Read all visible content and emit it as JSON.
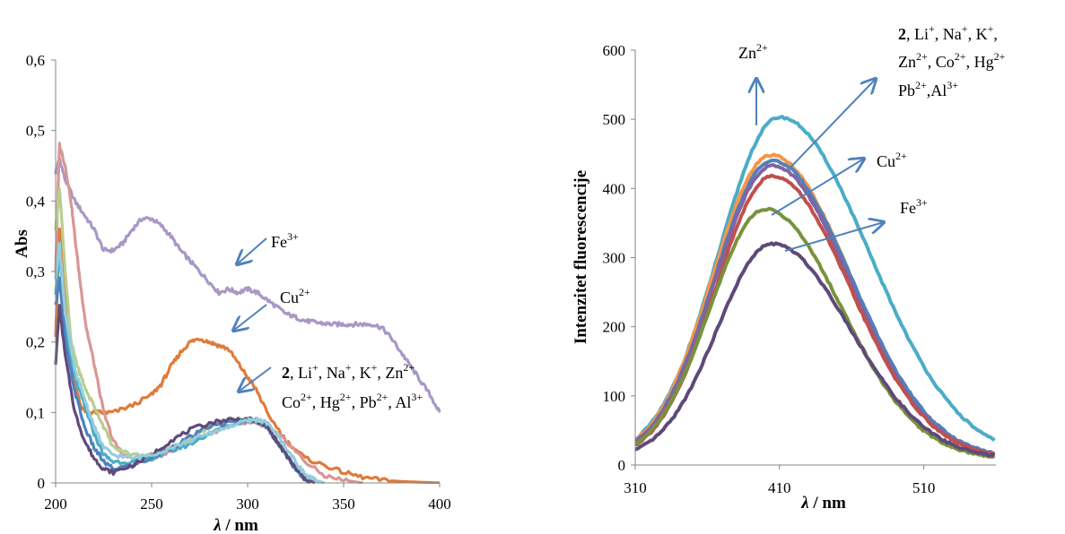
{
  "colors": {
    "purple_light": "#a898c6",
    "orange": "#e07b39",
    "pink": "#d99694",
    "lime": "#b9cd8f",
    "teal": "#4bacc6",
    "blue": "#4f81bd",
    "dark_purple": "#604a7b",
    "light_blue": "#93cddd",
    "cyan": "#4bacc6",
    "orange2": "#f79646",
    "red": "#c0504d",
    "navy_purple": "#8064a2",
    "green": "#77933c",
    "indigo": "#5f497a",
    "arrow": "#4f81bd"
  },
  "chart_data": [
    {
      "type": "line",
      "xlabel_italic": "λ",
      "xlabel_rest": " / nm",
      "ylabel": "Abs",
      "xlim": [
        200,
        400
      ],
      "ylim": [
        0,
        0.6
      ],
      "xticks": [
        200,
        250,
        300,
        350,
        400
      ],
      "yticks": [
        "0",
        "0,1",
        "0,2",
        "0,3",
        "0,4",
        "0,5",
        "0,6"
      ],
      "ytick_values": [
        0,
        0.1,
        0.2,
        0.3,
        0.4,
        0.5,
        0.6
      ],
      "grid": false,
      "series": [
        {
          "color_key": "purple_light",
          "x": [
            200,
            202,
            205,
            210,
            215,
            220,
            225,
            230,
            235,
            240,
            245,
            250,
            255,
            260,
            265,
            270,
            275,
            280,
            285,
            290,
            295,
            300,
            305,
            310,
            315,
            320,
            325,
            330,
            335,
            340,
            345,
            350,
            355,
            360,
            365,
            370,
            375,
            380,
            385,
            390,
            395,
            400
          ],
          "y": [
            0.44,
            0.46,
            0.43,
            0.4,
            0.38,
            0.36,
            0.33,
            0.33,
            0.34,
            0.36,
            0.375,
            0.375,
            0.365,
            0.35,
            0.33,
            0.315,
            0.3,
            0.285,
            0.27,
            0.275,
            0.27,
            0.275,
            0.27,
            0.26,
            0.25,
            0.24,
            0.235,
            0.23,
            0.228,
            0.226,
            0.225,
            0.225,
            0.225,
            0.225,
            0.225,
            0.22,
            0.205,
            0.185,
            0.165,
            0.145,
            0.125,
            0.1
          ]
        },
        {
          "color_key": "orange",
          "x": [
            200,
            202,
            205,
            208,
            210,
            213,
            216,
            220,
            225,
            230,
            240,
            250,
            255,
            260,
            265,
            270,
            275,
            280,
            285,
            290,
            295,
            300,
            305,
            310,
            320,
            330,
            340,
            350,
            360,
            370,
            380,
            390,
            400
          ],
          "y": [
            0.21,
            0.36,
            0.28,
            0.18,
            0.14,
            0.11,
            0.1,
            0.1,
            0.1,
            0.1,
            0.11,
            0.125,
            0.14,
            0.165,
            0.185,
            0.2,
            0.205,
            0.2,
            0.195,
            0.19,
            0.17,
            0.15,
            0.13,
            0.1,
            0.06,
            0.035,
            0.025,
            0.015,
            0.008,
            0.004,
            0.002,
            0.001,
            0.0
          ]
        },
        {
          "color_key": "pink",
          "x": [
            200,
            202,
            205,
            208,
            210,
            213,
            216,
            220,
            225,
            230,
            235,
            240,
            250,
            260,
            270,
            280,
            290,
            300,
            310,
            320,
            330,
            340,
            350,
            360
          ],
          "y": [
            0.3,
            0.48,
            0.45,
            0.4,
            0.35,
            0.28,
            0.22,
            0.17,
            0.1,
            0.06,
            0.04,
            0.035,
            0.035,
            0.045,
            0.06,
            0.07,
            0.08,
            0.085,
            0.08,
            0.06,
            0.03,
            0.01,
            0.004,
            0.0
          ]
        },
        {
          "color_key": "lime",
          "x": [
            200,
            202,
            205,
            208,
            212,
            216,
            220,
            225,
            230,
            240,
            250,
            260,
            270,
            280,
            285,
            290,
            295,
            300,
            305,
            310,
            315,
            320,
            325,
            330,
            335,
            340
          ],
          "y": [
            0.36,
            0.42,
            0.3,
            0.2,
            0.16,
            0.13,
            0.11,
            0.08,
            0.05,
            0.04,
            0.04,
            0.05,
            0.06,
            0.08,
            0.085,
            0.09,
            0.09,
            0.09,
            0.088,
            0.08,
            0.06,
            0.04,
            0.02,
            0.008,
            0.003,
            0.0
          ]
        },
        {
          "color_key": "teal",
          "x": [
            200,
            202,
            205,
            210,
            215,
            220,
            225,
            230,
            240,
            250,
            260,
            270,
            280,
            290,
            300,
            305,
            310,
            315,
            320,
            325,
            330,
            335
          ],
          "y": [
            0.27,
            0.33,
            0.22,
            0.15,
            0.11,
            0.07,
            0.04,
            0.03,
            0.03,
            0.035,
            0.045,
            0.055,
            0.07,
            0.08,
            0.09,
            0.088,
            0.08,
            0.06,
            0.04,
            0.02,
            0.005,
            0.0
          ]
        },
        {
          "color_key": "blue",
          "x": [
            200,
            202,
            205,
            210,
            215,
            220,
            225,
            230,
            240,
            250,
            260,
            270,
            280,
            290,
            300,
            305,
            310,
            315,
            320,
            325,
            330,
            335
          ],
          "y": [
            0.25,
            0.29,
            0.2,
            0.13,
            0.08,
            0.05,
            0.03,
            0.02,
            0.025,
            0.035,
            0.05,
            0.065,
            0.08,
            0.085,
            0.09,
            0.088,
            0.08,
            0.06,
            0.04,
            0.02,
            0.005,
            0.0
          ]
        },
        {
          "color_key": "dark_purple",
          "x": [
            200,
            202,
            205,
            210,
            215,
            220,
            225,
            230,
            240,
            250,
            260,
            270,
            280,
            290,
            300,
            305,
            310,
            315,
            320,
            325,
            330,
            335
          ],
          "y": [
            0.17,
            0.25,
            0.18,
            0.1,
            0.06,
            0.035,
            0.02,
            0.015,
            0.025,
            0.04,
            0.06,
            0.075,
            0.085,
            0.09,
            0.09,
            0.088,
            0.08,
            0.06,
            0.04,
            0.02,
            0.005,
            0.0
          ]
        },
        {
          "color_key": "light_blue",
          "x": [
            200,
            202,
            205,
            210,
            215,
            220,
            225,
            230,
            240,
            250,
            260,
            270,
            280,
            290,
            300,
            305,
            310,
            315,
            320,
            325,
            330,
            335,
            340
          ],
          "y": [
            0.29,
            0.34,
            0.24,
            0.16,
            0.12,
            0.08,
            0.05,
            0.04,
            0.035,
            0.04,
            0.05,
            0.06,
            0.07,
            0.08,
            0.088,
            0.09,
            0.085,
            0.07,
            0.05,
            0.03,
            0.012,
            0.004,
            0.0
          ]
        }
      ]
    },
    {
      "type": "line",
      "xlabel_italic": "λ",
      "xlabel_rest": " / nm",
      "ylabel": "Intenzitet fluorescencije",
      "xlim": [
        310,
        560
      ],
      "ylim": [
        0,
        600
      ],
      "xticks": [
        310,
        410,
        510
      ],
      "yticks": [
        "0",
        "100",
        "200",
        "300",
        "400",
        "500",
        "600"
      ],
      "ytick_values": [
        0,
        100,
        200,
        300,
        400,
        500,
        600
      ],
      "grid": false,
      "series": [
        {
          "color_key": "cyan",
          "peak": 495,
          "center": 410,
          "sigma_left": 42,
          "sigma_right": 62
        },
        {
          "color_key": "orange2",
          "peak": 440,
          "center": 404,
          "sigma_left": 40,
          "sigma_right": 55
        },
        {
          "color_key": "blue",
          "peak": 432,
          "center": 405,
          "sigma_left": 40,
          "sigma_right": 55
        },
        {
          "color_key": "navy_purple",
          "peak": 425,
          "center": 405,
          "sigma_left": 40,
          "sigma_right": 54
        },
        {
          "color_key": "red",
          "peak": 410,
          "center": 405,
          "sigma_left": 39,
          "sigma_right": 54
        },
        {
          "color_key": "green",
          "peak": 362,
          "center": 400,
          "sigma_left": 38,
          "sigma_right": 53
        },
        {
          "color_key": "indigo",
          "peak": 312,
          "center": 405,
          "sigma_left": 38,
          "sigma_right": 54
        }
      ]
    }
  ],
  "annotations": {
    "left": {
      "fe": {
        "base": "Fe",
        "sup": "3+"
      },
      "cu": {
        "base": "Cu",
        "sup": "2+"
      },
      "group_line1": {
        "bold": "2",
        "rest": ", Li",
        "s1": "+",
        "t2": ", Na",
        "s2": "+",
        "t3": ", K",
        "s3": "+",
        "t4": ", Zn",
        "s4": "2+"
      },
      "group_line2": {
        "t1": "Co",
        "s1": "2+",
        "t2": ", Hg",
        "s2": "2+",
        "t3": ", Pb",
        "s3": "2+",
        "t4": ", Al",
        "s4": "3+"
      }
    },
    "right": {
      "zn": {
        "base": "Zn",
        "sup": "2+"
      },
      "cu": {
        "base": "Cu",
        "sup": "2+"
      },
      "fe": {
        "base": "Fe",
        "sup": "3+"
      },
      "group_line1": {
        "bold": "2",
        "t1": ", Li",
        "s1": "+",
        "t2": ", Na",
        "s2": "+",
        "t3": ", K",
        "s3": "+",
        "t4": ","
      },
      "group_line2": {
        "t1": "Zn",
        "s1": "2+",
        "t2": ", Co",
        "s2": "2+",
        "t3": ", Hg",
        "s3": "2+"
      },
      "group_line3": {
        "t1": "Pb",
        "s1": "2+",
        "t2": ",Al",
        "s2": "3+"
      }
    }
  }
}
